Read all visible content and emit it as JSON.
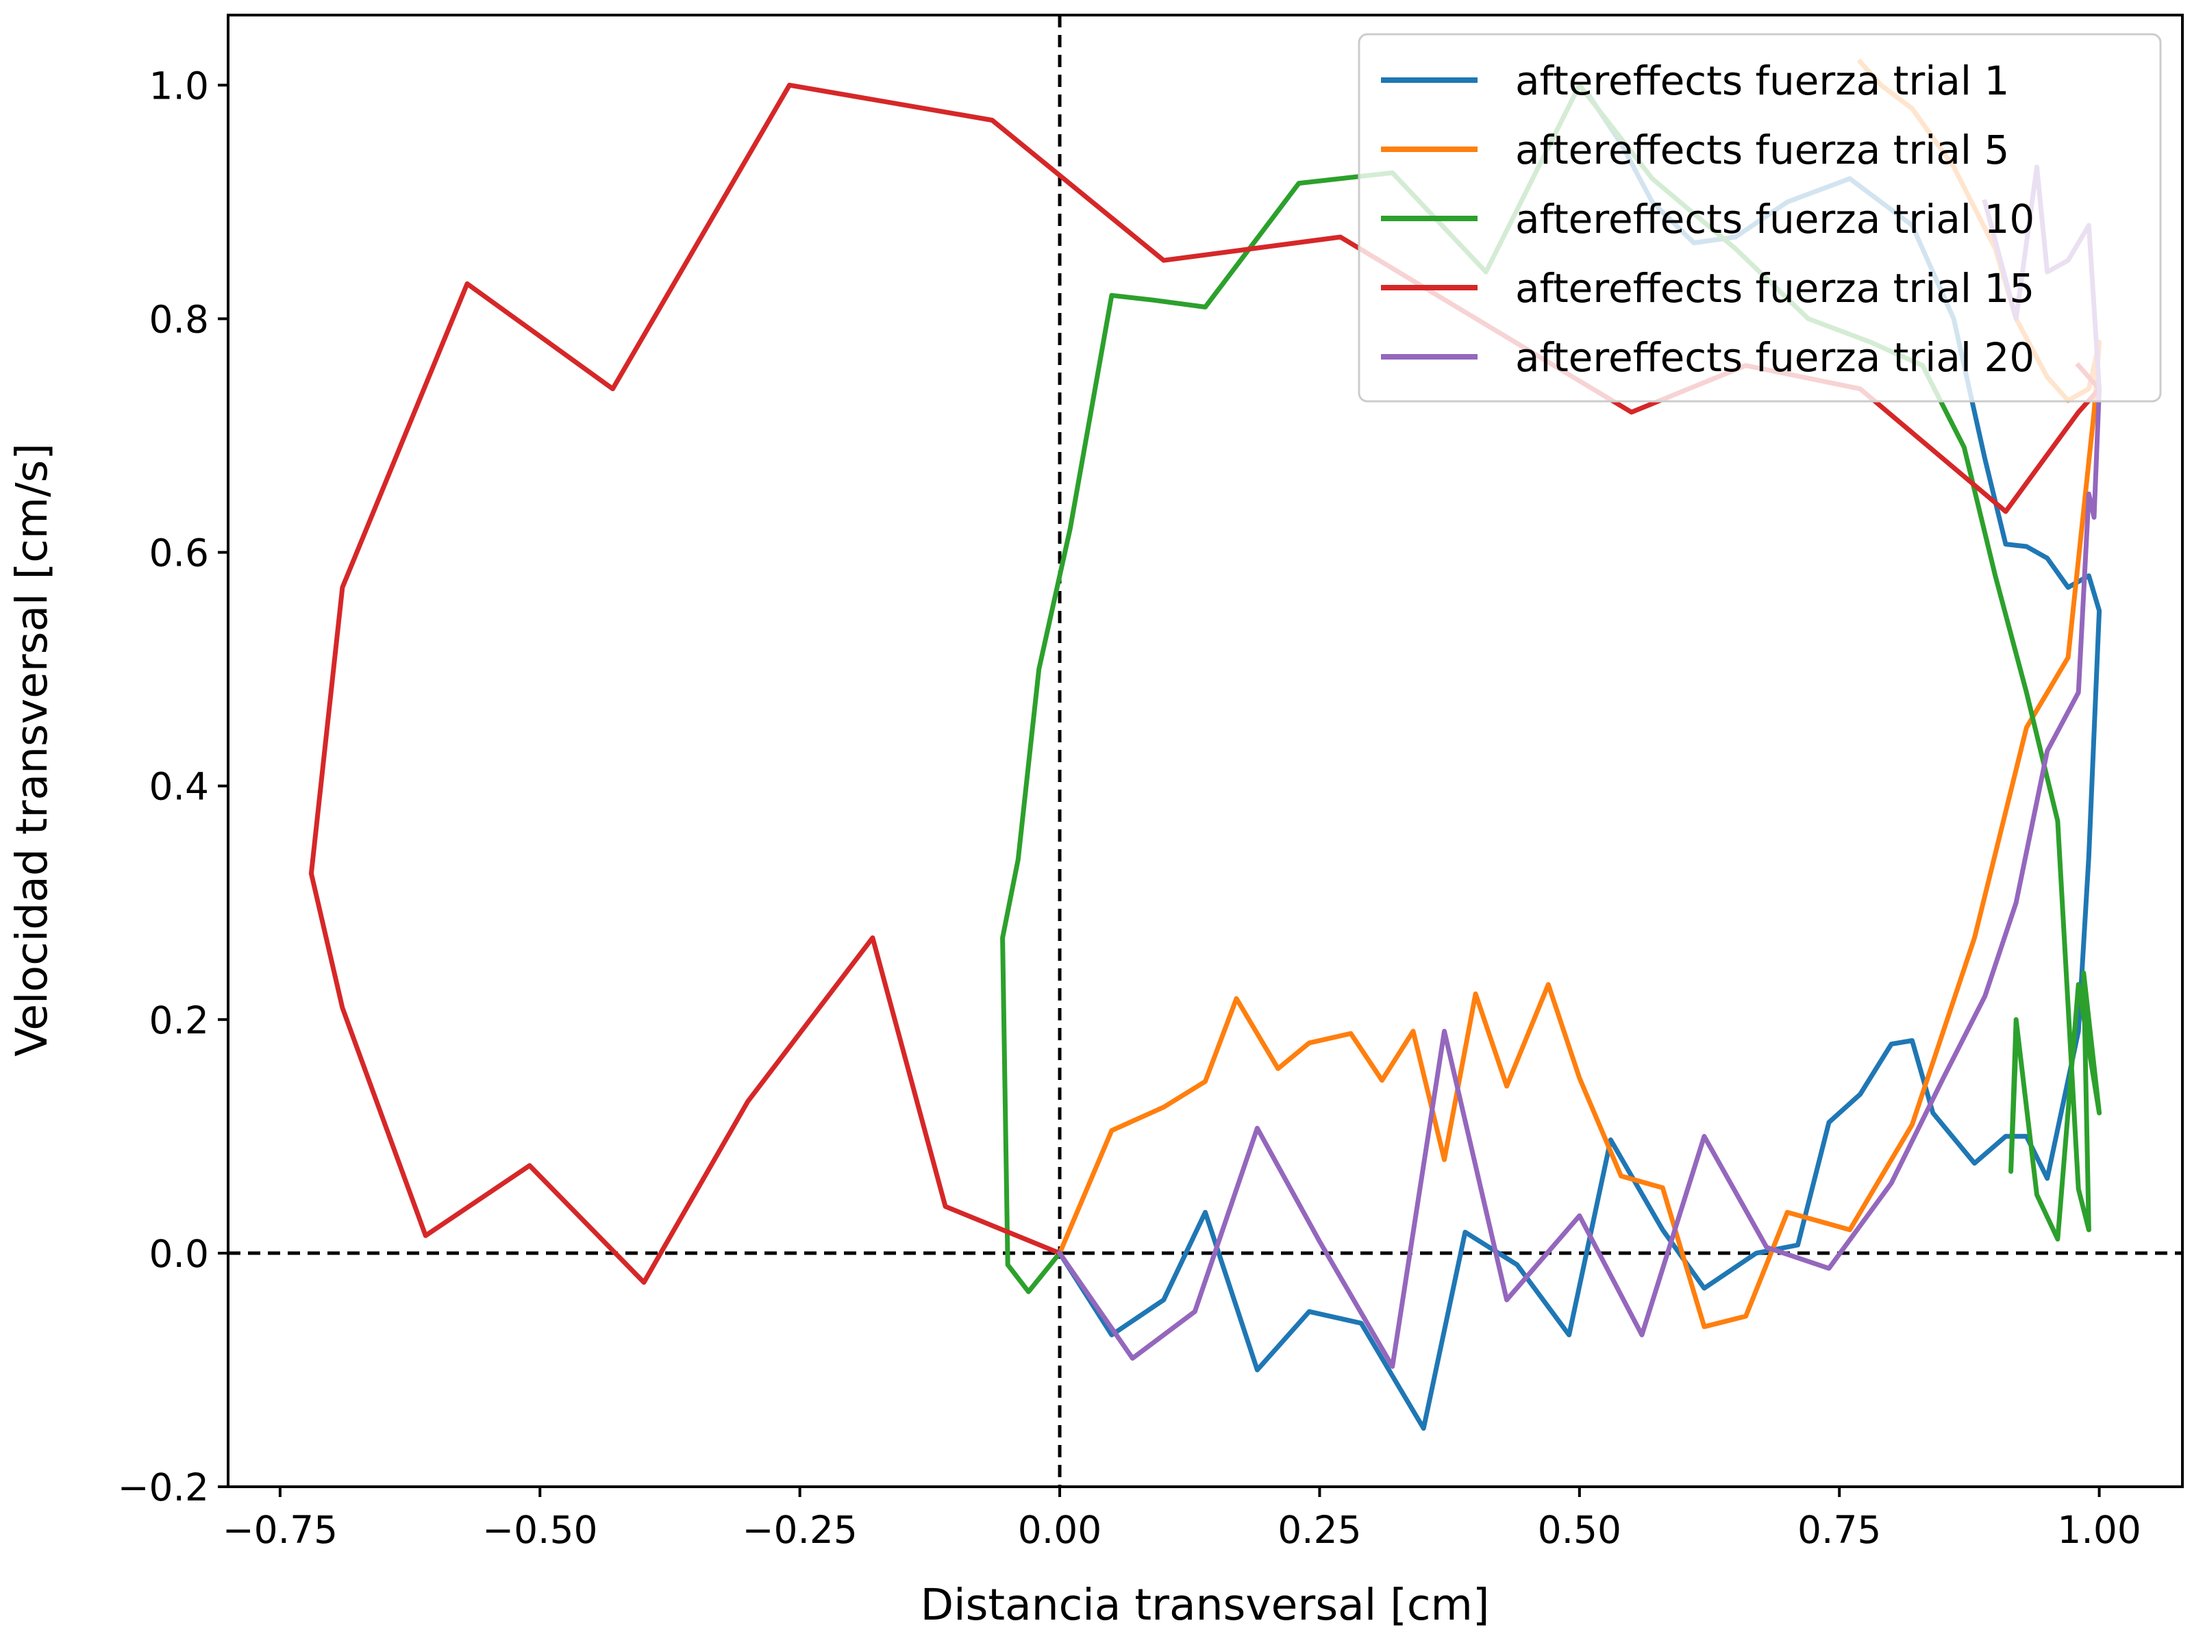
{
  "chart_data": {
    "type": "line",
    "title": "",
    "xlabel": "Distancia transversal [cm]",
    "ylabel": "Velocidad transversal [cm/s]",
    "xlim": [
      -0.8,
      1.08
    ],
    "ylim": [
      -0.2,
      1.06
    ],
    "xticks": [
      -0.75,
      -0.5,
      -0.25,
      0.0,
      0.25,
      0.5,
      0.75,
      1.0
    ],
    "xtick_labels": [
      "−0.75",
      "−0.50",
      "−0.25",
      "0.00",
      "0.25",
      "0.50",
      "0.75",
      "1.00"
    ],
    "yticks": [
      -0.2,
      0.0,
      0.2,
      0.4,
      0.6,
      0.8,
      1.0
    ],
    "ytick_labels": [
      "−0.2",
      "0.0",
      "0.2",
      "0.4",
      "0.6",
      "0.8",
      "1.0"
    ],
    "grid": false,
    "legend_position": "upper right",
    "reference_lines": [
      {
        "orientation": "horizontal",
        "value": 0.0,
        "style": "dashed",
        "color": "#000000"
      },
      {
        "orientation": "vertical",
        "value": 0.0,
        "style": "dashed",
        "color": "#000000"
      }
    ],
    "series": [
      {
        "name": "aftereffects fuerza trial 1",
        "color": "#1f77b4",
        "x": [
          0.0,
          0.05,
          0.1,
          0.14,
          0.19,
          0.24,
          0.29,
          0.35,
          0.39,
          0.44,
          0.49,
          0.53,
          0.58,
          0.62,
          0.67,
          0.71,
          0.74,
          0.77,
          0.8,
          0.82,
          0.84,
          0.88,
          0.91,
          0.93,
          0.95,
          0.98,
          0.99,
          1.0,
          0.99,
          0.97,
          0.95,
          0.93,
          0.91,
          0.89,
          0.86,
          0.82,
          0.76,
          0.7,
          0.65,
          0.61,
          0.57,
          0.54,
          0.51
        ],
        "y": [
          0.0,
          -0.07,
          -0.04,
          0.035,
          -0.1,
          -0.05,
          -0.06,
          -0.15,
          0.018,
          -0.01,
          -0.07,
          0.097,
          0.02,
          -0.03,
          0.0,
          0.007,
          0.112,
          0.136,
          0.179,
          0.182,
          0.12,
          0.077,
          0.1,
          0.1,
          0.064,
          0.19,
          0.34,
          0.55,
          0.58,
          0.57,
          0.595,
          0.605,
          0.607,
          0.68,
          0.8,
          0.88,
          0.92,
          0.9,
          0.87,
          0.865,
          0.9,
          0.95,
          0.99
        ]
      },
      {
        "name": "aftereffects fuerza trial 5",
        "color": "#ff7f0e",
        "x": [
          0.0,
          0.05,
          0.1,
          0.14,
          0.17,
          0.21,
          0.24,
          0.28,
          0.31,
          0.34,
          0.37,
          0.4,
          0.43,
          0.47,
          0.5,
          0.54,
          0.58,
          0.62,
          0.66,
          0.7,
          0.76,
          0.82,
          0.88,
          0.93,
          0.97,
          0.995,
          1.0,
          0.99,
          0.97,
          0.95,
          0.92,
          0.9,
          0.86,
          0.82,
          0.79,
          0.77
        ],
        "y": [
          0.0,
          0.105,
          0.125,
          0.147,
          0.218,
          0.158,
          0.18,
          0.188,
          0.148,
          0.19,
          0.08,
          0.222,
          0.143,
          0.23,
          0.15,
          0.066,
          0.056,
          -0.063,
          -0.054,
          0.035,
          0.02,
          0.11,
          0.27,
          0.45,
          0.51,
          0.72,
          0.78,
          0.74,
          0.73,
          0.75,
          0.8,
          0.86,
          0.93,
          0.98,
          1.0,
          1.02
        ]
      },
      {
        "name": "aftereffects fuerza trial 10",
        "color": "#2ca02c",
        "x": [
          0.0,
          -0.03,
          -0.05,
          -0.055,
          -0.04,
          -0.02,
          0.01,
          0.05,
          0.09,
          0.14,
          0.23,
          0.32,
          0.41,
          0.5,
          0.57,
          0.65,
          0.72,
          0.78,
          0.83,
          0.87,
          0.9,
          0.93,
          0.96,
          0.98,
          0.99,
          0.985,
          1.0,
          0.98,
          0.96,
          0.94,
          0.92,
          0.915,
          0.92
        ],
        "y": [
          0.0,
          -0.033,
          -0.01,
          0.27,
          0.337,
          0.5,
          0.62,
          0.82,
          0.816,
          0.81,
          0.916,
          0.925,
          0.84,
          1.0,
          0.92,
          0.86,
          0.8,
          0.78,
          0.76,
          0.69,
          0.58,
          0.48,
          0.37,
          0.055,
          0.02,
          0.24,
          0.12,
          0.23,
          0.012,
          0.05,
          0.2,
          0.07,
          0.18
        ]
      },
      {
        "name": "aftereffects fuerza trial 15",
        "color": "#d62728",
        "x": [
          0.0,
          -0.11,
          -0.18,
          -0.3,
          -0.4,
          -0.51,
          -0.61,
          -0.69,
          -0.72,
          -0.69,
          -0.57,
          -0.43,
          -0.26,
          -0.065,
          0.1,
          0.27,
          0.55,
          0.66,
          0.77,
          0.91,
          0.98,
          1.0,
          0.98
        ],
        "y": [
          0.0,
          0.04,
          0.27,
          0.13,
          -0.025,
          0.075,
          0.015,
          0.21,
          0.325,
          0.57,
          0.83,
          0.74,
          1.0,
          0.97,
          0.85,
          0.87,
          0.72,
          0.76,
          0.74,
          0.635,
          0.72,
          0.74,
          0.76
        ]
      },
      {
        "name": "aftereffects fuerza trial 20",
        "color": "#9467bd",
        "x": [
          0.0,
          0.07,
          0.13,
          0.19,
          0.25,
          0.32,
          0.37,
          0.43,
          0.5,
          0.56,
          0.62,
          0.68,
          0.74,
          0.8,
          0.85,
          0.89,
          0.92,
          0.95,
          0.98,
          0.99,
          0.995,
          1.0,
          0.99,
          0.97,
          0.95,
          0.94,
          0.92,
          0.89
        ],
        "y": [
          0.0,
          -0.09,
          -0.05,
          0.107,
          0.01,
          -0.097,
          0.19,
          -0.04,
          0.032,
          -0.07,
          0.1,
          0.005,
          -0.013,
          0.06,
          0.15,
          0.22,
          0.3,
          0.43,
          0.48,
          0.65,
          0.63,
          0.74,
          0.88,
          0.85,
          0.84,
          0.93,
          0.8,
          0.9
        ]
      }
    ]
  }
}
